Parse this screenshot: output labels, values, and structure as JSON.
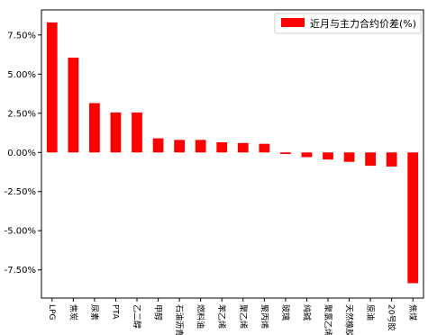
{
  "chart_data": {
    "type": "bar",
    "categories": [
      "LPG",
      "焦炭",
      "尿素",
      "PTA",
      "乙二醇",
      "甲醇",
      "石油沥青",
      "燃料油",
      "苯乙烯",
      "聚乙烯",
      "聚丙烯",
      "玻璃",
      "纯碱",
      "聚氯乙烯",
      "天然橡胶",
      "原油",
      "20号胶",
      "焦煤"
    ],
    "series": [
      {
        "name": "近月与主力合约价差(%)",
        "values": [
          8.3,
          6.05,
          3.15,
          2.55,
          2.55,
          0.9,
          0.8,
          0.8,
          0.65,
          0.6,
          0.55,
          -0.1,
          -0.3,
          -0.45,
          -0.6,
          -0.85,
          -0.9,
          -8.35
        ]
      }
    ],
    "ylim": [
      -9.3,
      9.1
    ],
    "yticks": [
      -7.5,
      -5.0,
      -2.5,
      0.0,
      2.5,
      5.0,
      7.5
    ],
    "ytick_labels": [
      "-7.50%",
      "-5.00%",
      "-2.50%",
      "0.00%",
      "2.50%",
      "5.00%",
      "7.50%"
    ],
    "legend_position": "top-right",
    "colors": {
      "bar": "#ff0000"
    },
    "grid": false
  }
}
